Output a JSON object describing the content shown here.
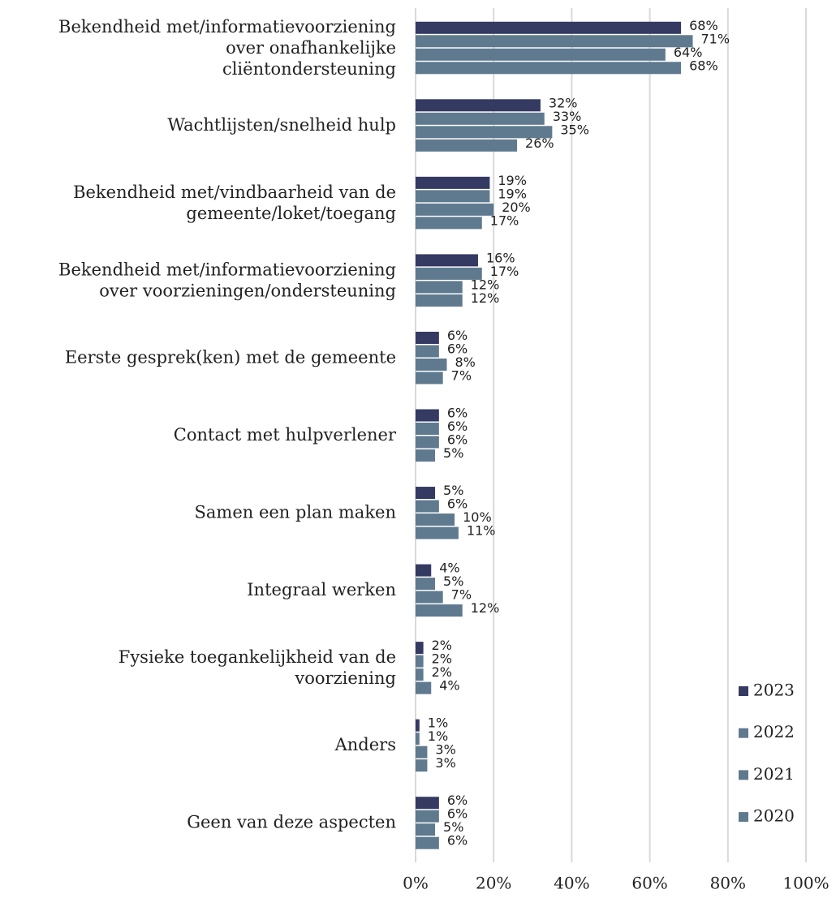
{
  "chart_data": {
    "type": "barh",
    "categories": [
      "Bekendheid met/informatievoorziening\nover onafhankelijke\ncliëntondersteuning",
      "Wachtlijsten/snelheid hulp",
      "Bekendheid met/vindbaarheid van de\ngemeente/loket/toegang",
      "Bekendheid met/informatievoorziening\nover voorzieningen/ondersteuning",
      "Eerste gesprek(ken) met de gemeente",
      "Contact met hulpverlener",
      "Samen een plan maken",
      "Integraal werken",
      "Fysieke toegankelijkheid van de\nvoorziening",
      "Anders",
      "Geen van deze aspecten"
    ],
    "series": [
      {
        "name": "2023",
        "color": "#353a63",
        "values": [
          68,
          32,
          19,
          16,
          6,
          6,
          5,
          4,
          2,
          1,
          6
        ],
        "value_labels": [
          "68%",
          "32%",
          "19%",
          "16%",
          "6%",
          "6%",
          "5%",
          "4%",
          "2%",
          "1%",
          "6%"
        ]
      },
      {
        "name": "2022",
        "color": "#5f7a8f",
        "values": [
          71,
          33,
          19,
          17,
          6,
          6,
          6,
          5,
          2,
          1,
          6
        ],
        "value_labels": [
          "71%",
          "33%",
          "19%",
          "17%",
          "6%",
          "6%",
          "6%",
          "5%",
          "2%",
          "1%",
          "6%"
        ]
      },
      {
        "name": "2021",
        "color": "#5f7a8f",
        "values": [
          64,
          35,
          20,
          12,
          8,
          6,
          10,
          7,
          2,
          3,
          5
        ],
        "value_labels": [
          "64%",
          "35%",
          "20%",
          "12%",
          "8%",
          "6%",
          "10%",
          "7%",
          "2%",
          "3%",
          "5%"
        ]
      },
      {
        "name": "2020",
        "color": "#5f7a8f",
        "values": [
          68,
          26,
          17,
          12,
          7,
          5,
          11,
          12,
          4,
          3,
          6
        ],
        "value_labels": [
          "68%",
          "26%",
          "17%",
          "12%",
          "7%",
          "5%",
          "11%",
          "12%",
          "4%",
          "3%",
          "6%"
        ]
      }
    ],
    "xlim": [
      0,
      100
    ],
    "xticks": [
      {
        "value": 0,
        "label": "0%"
      },
      {
        "value": 20,
        "label": "20%"
      },
      {
        "value": 40,
        "label": "40%"
      },
      {
        "value": 60,
        "label": "60%"
      },
      {
        "value": 80,
        "label": "80%"
      },
      {
        "value": 100,
        "label": "100%"
      }
    ],
    "grid": true,
    "legend": "lower right"
  }
}
